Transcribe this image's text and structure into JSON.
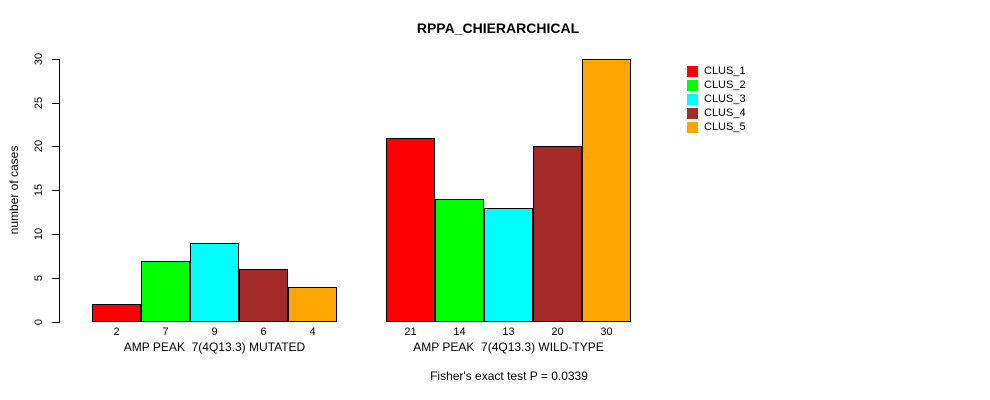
{
  "title": "RPPA_CHIERARCHICAL",
  "footer": "Fisher's exact test P = 0.0339",
  "chart_data": {
    "type": "bar",
    "title": "RPPA_CHIERARCHICAL",
    "ylabel": "number of cases",
    "xlabel": "",
    "ylim": [
      0,
      30
    ],
    "yticks": [
      0,
      5,
      10,
      15,
      20,
      25,
      30
    ],
    "grid": false,
    "legend_position": "right-outside",
    "series": [
      "CLUS_1",
      "CLUS_2",
      "CLUS_3",
      "CLUS_4",
      "CLUS_5"
    ],
    "colors": [
      "#FF0000",
      "#00FF00",
      "#00FFFF",
      "#A52A2A",
      "#FFA500"
    ],
    "bar_border_color": "#000000",
    "groups": [
      {
        "label": "AMP PEAK  7(4Q13.3) MUTATED",
        "values": [
          2,
          7,
          9,
          6,
          4
        ]
      },
      {
        "label": "AMP PEAK  7(4Q13.3) WILD-TYPE",
        "values": [
          21,
          14,
          13,
          20,
          30
        ]
      }
    ],
    "bar_value_labels_shown": true,
    "annotation": "Fisher's exact test P = 0.0339"
  }
}
